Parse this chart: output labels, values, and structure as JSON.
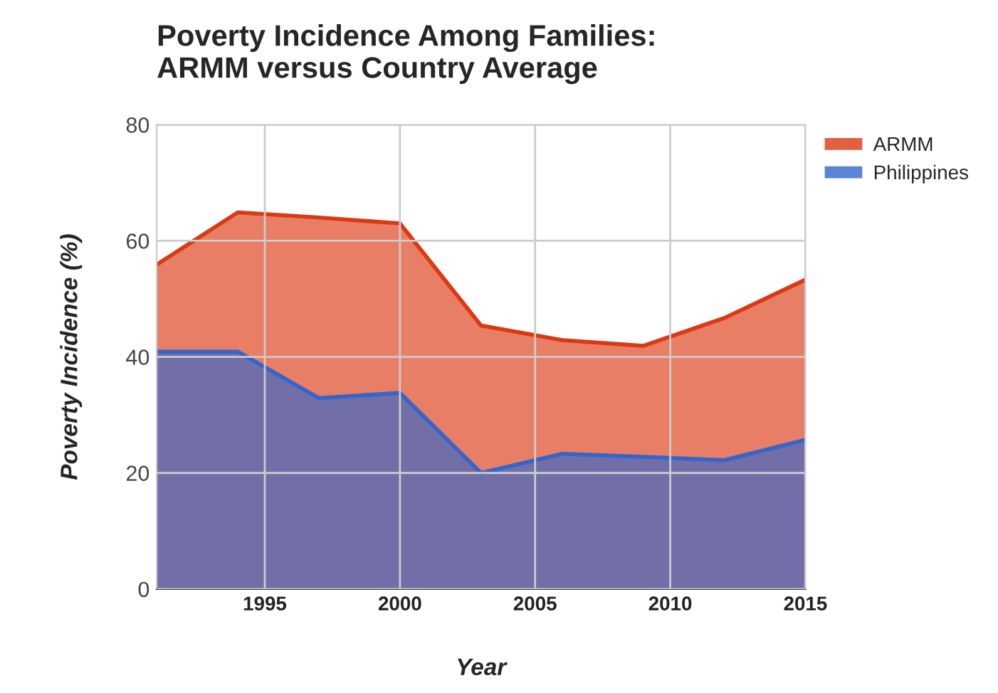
{
  "chart_data": {
    "type": "area",
    "title": "Poverty Incidence Among Families:\nARMM versus Country Average",
    "xlabel": "Year",
    "ylabel": "Poverty Incidence (%)",
    "x": [
      1991,
      1994,
      1997,
      2000,
      2003,
      2006,
      2009,
      2012,
      2015
    ],
    "series": [
      {
        "name": "ARMM",
        "color": "#dc3912",
        "values": [
          55.9,
          64.9,
          64.0,
          63.0,
          45.4,
          42.9,
          41.9,
          46.7,
          53.3
        ]
      },
      {
        "name": "Philippines",
        "color": "#3366cc",
        "values": [
          40.9,
          40.9,
          32.9,
          33.8,
          20.0,
          23.3,
          22.8,
          22.2,
          25.7
        ]
      }
    ],
    "xlim": [
      1991,
      2015
    ],
    "xticks": [
      1995,
      2000,
      2005,
      2010,
      2015
    ],
    "ylim": [
      0,
      80
    ],
    "yticks": [
      0,
      20,
      40,
      60,
      80
    ],
    "grid": true,
    "legend": "top right",
    "marker": "none",
    "line_style": "solid"
  }
}
